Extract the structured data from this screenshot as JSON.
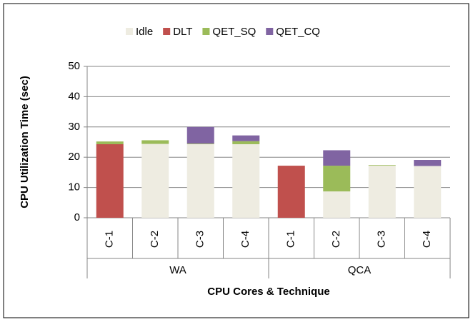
{
  "chart_data": {
    "type": "stacked_bar",
    "y_label": "CPU Utilization Time (sec)",
    "x_label": "CPU Cores & Technique",
    "categories": [
      "C-1",
      "C-2",
      "C-3",
      "C-4",
      "C-1",
      "C-2",
      "C-3",
      "C-4"
    ],
    "groups": [
      "WA",
      "QCA"
    ],
    "series": [
      {
        "name": "Idle",
        "color": "#eeece1",
        "values": [
          0,
          24.4,
          24.3,
          24.3,
          0,
          8.7,
          17.2,
          17.1
        ]
      },
      {
        "name": "DLT",
        "color": "#c0504d",
        "values": [
          24.3,
          0,
          0,
          0,
          17.2,
          0,
          0,
          0
        ]
      },
      {
        "name": "QET_SQ",
        "color": "#9bbb59",
        "values": [
          0.9,
          1.2,
          0.2,
          1.0,
          0,
          8.5,
          0.2,
          0
        ]
      },
      {
        "name": "QET_CQ",
        "color": "#8064a2",
        "values": [
          0,
          0,
          5.5,
          1.9,
          0,
          5.1,
          0,
          2.0
        ]
      }
    ],
    "ylim": [
      0,
      50
    ],
    "yticks": [
      0,
      10,
      20,
      30,
      40,
      50
    ],
    "grid": true,
    "legend": "top"
  }
}
